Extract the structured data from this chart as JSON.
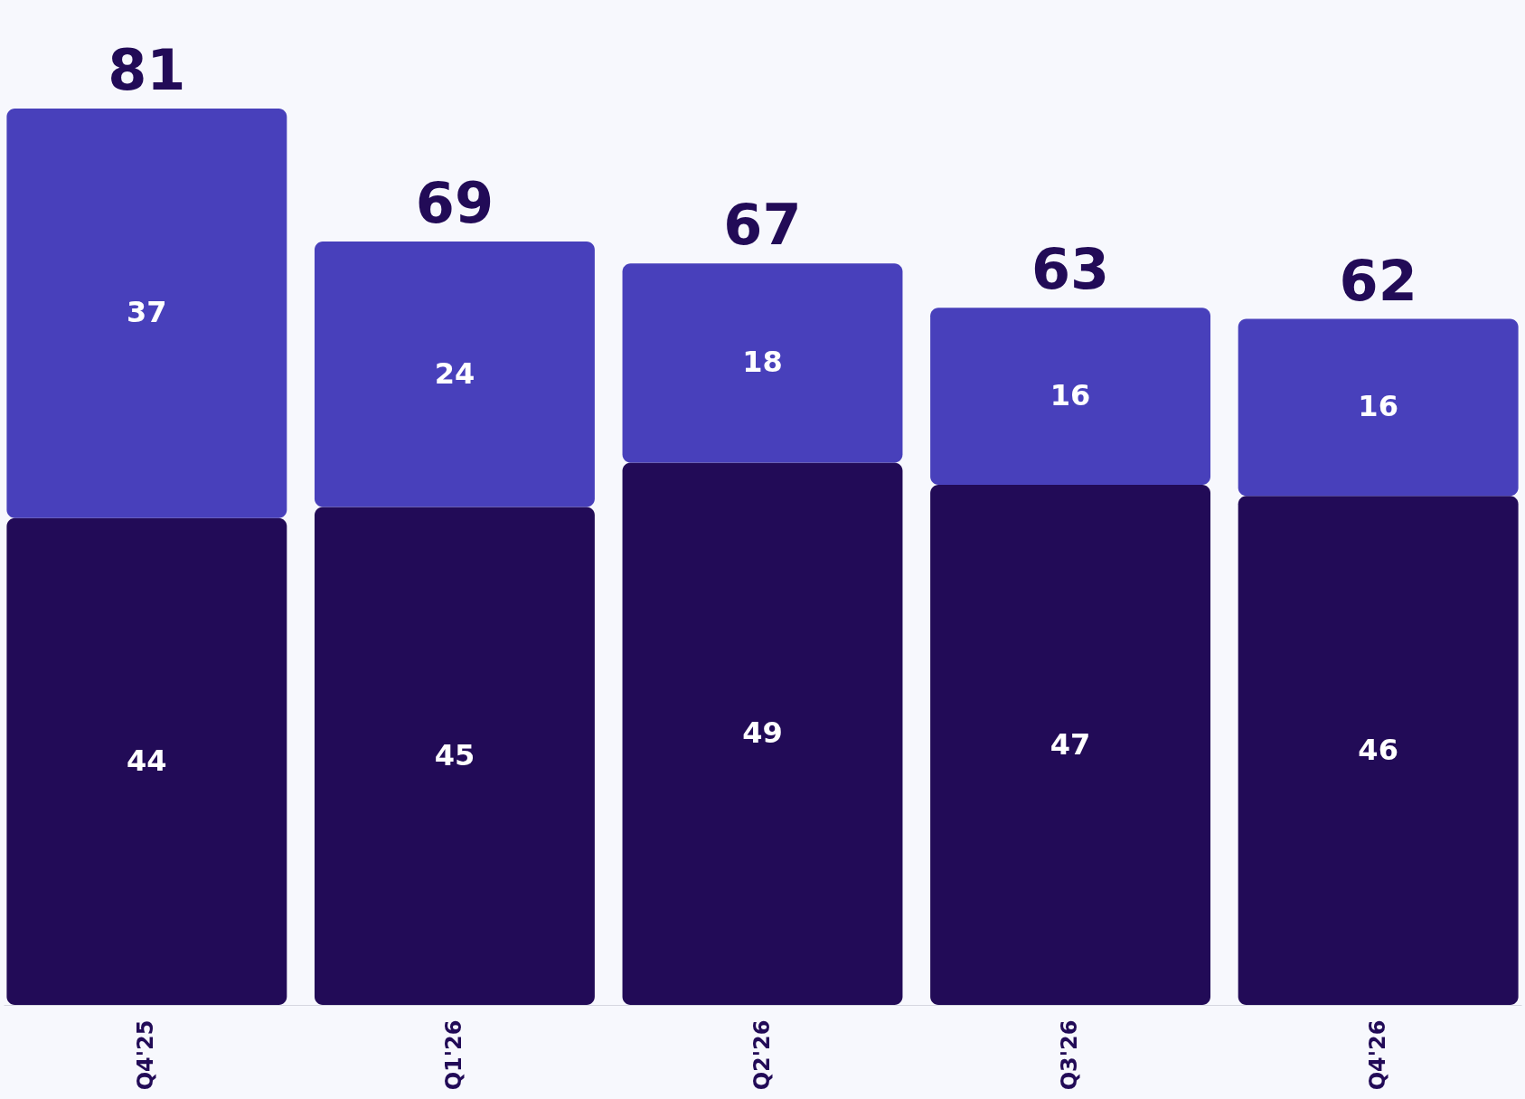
{
  "chart_data": {
    "type": "bar",
    "stacked": true,
    "categories": [
      "Q4'25",
      "Q1'26",
      "Q2'26",
      "Q3'26",
      "Q4'26"
    ],
    "series": [
      {
        "color": "#220b57",
        "values": [
          44,
          45,
          49,
          47,
          46
        ]
      },
      {
        "color": "#4840bb",
        "values": [
          37,
          24,
          18,
          16,
          16
        ]
      }
    ],
    "data_labels": true,
    "totals": [
      "81",
      "69",
      "67",
      "63",
      "62"
    ],
    "tick_labels": "x",
    "grid": false,
    "legend": false
  }
}
